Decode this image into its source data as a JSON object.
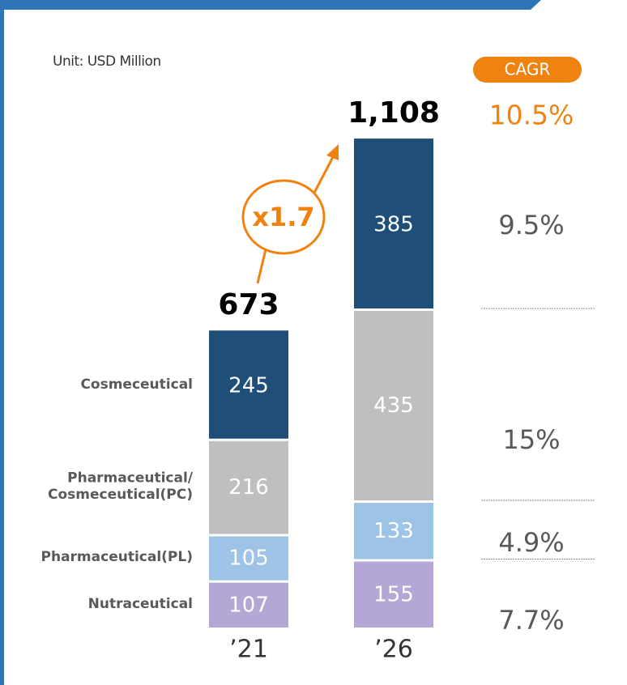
{
  "chart_data": {
    "type": "stacked_bar",
    "unit": "Unit: USD Million",
    "categories": [
      "’21",
      "’26"
    ],
    "series": [
      {
        "name": "Nutraceutical",
        "color": "#b4a7d6",
        "values": [
          107,
          155
        ],
        "cagr": 7.7,
        "cagr_label": "7.7%"
      },
      {
        "name": "Pharmaceutical(PL)",
        "color": "#9dc3e6",
        "values": [
          105,
          133
        ],
        "cagr": 4.9,
        "cagr_label": "4.9%"
      },
      {
        "name": "Pharmaceutical/\nCosmeceutical(PC)",
        "color": "#bfbfbf",
        "values": [
          216,
          435
        ],
        "cagr": 15,
        "cagr_label": "15%"
      },
      {
        "name": "Cosmeceutical",
        "color": "#1f4e79",
        "values": [
          245,
          385
        ],
        "cagr": 9.5,
        "cagr_label": "9.5%"
      }
    ],
    "totals": {
      "values": [
        673,
        1108
      ],
      "value_labels": [
        "673",
        "1,108"
      ]
    },
    "cagr_title": "CAGR",
    "total_cagr": 10.5,
    "total_cagr_label": "10.5%",
    "growth_label": "x1.7"
  }
}
